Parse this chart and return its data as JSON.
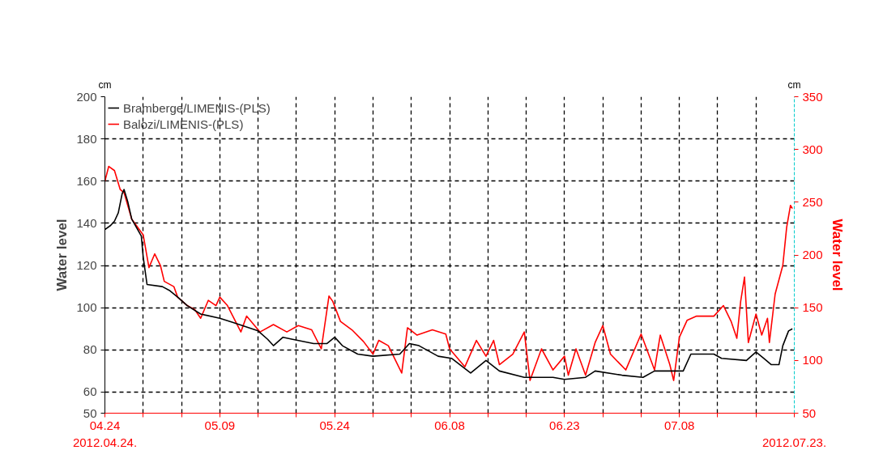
{
  "chart_data": {
    "type": "line",
    "ylabel": "Water level",
    "y2label": "Water level",
    "annotations": [
      "cm",
      "cm",
      "2012.04.24.",
      "2012.07.23."
    ],
    "xlim": [
      "2012-04-24",
      "2012-07-23"
    ],
    "xticks": [
      {
        "value": "2012-04-24",
        "label": "04.24"
      },
      {
        "value": "2012-04-29",
        "label": null
      },
      {
        "value": "2012-05-04",
        "label": null
      },
      {
        "value": "2012-05-09",
        "label": "05.09"
      },
      {
        "value": "2012-05-14",
        "label": null
      },
      {
        "value": "2012-05-19",
        "label": null
      },
      {
        "value": "2012-05-24",
        "label": "05.24"
      },
      {
        "value": "2012-05-29",
        "label": null
      },
      {
        "value": "2012-06-03",
        "label": null
      },
      {
        "value": "2012-06-08",
        "label": "06.08"
      },
      {
        "value": "2012-06-13",
        "label": null
      },
      {
        "value": "2012-06-18",
        "label": null
      },
      {
        "value": "2012-06-23",
        "label": "06.23"
      },
      {
        "value": "2012-06-28",
        "label": null
      },
      {
        "value": "2012-07-03",
        "label": null
      },
      {
        "value": "2012-07-08",
        "label": "07.08"
      },
      {
        "value": "2012-07-13",
        "label": null
      },
      {
        "value": "2012-07-18",
        "label": null
      },
      {
        "value": "2012-07-23",
        "label": null
      }
    ],
    "ylim": [
      50,
      200
    ],
    "yticks": [
      50,
      60,
      80,
      100,
      120,
      140,
      160,
      180,
      200
    ],
    "y2lim": [
      50,
      350
    ],
    "y2ticks": [
      50,
      100,
      150,
      200,
      250,
      300,
      350
    ],
    "grid": true,
    "legend": "top left",
    "line_style": "solid",
    "series": [
      {
        "name": "Bramberge/LIMENIS-(PLS)",
        "color": "#000000",
        "x": [
          "2012-04-24T00:00",
          "2012-04-24T18:00",
          "2012-04-25T06:00",
          "2012-04-25T18:00",
          "2012-04-26T06:00",
          "2012-04-26T12:00",
          "2012-04-27T00:00",
          "2012-04-27T12:00",
          "2012-04-28T18:00",
          "2012-04-29T00:00",
          "2012-04-29T12:00",
          "2012-05-01T12:00",
          "2012-05-02T12:00",
          "2012-05-03T12:00",
          "2012-05-04T18:00",
          "2012-05-06T12:00",
          "2012-05-09T00:00",
          "2012-05-10T18:00",
          "2012-05-14T00:00",
          "2012-05-15T06:00",
          "2012-05-16T00:00",
          "2012-05-17T06:00",
          "2012-05-18T12:00",
          "2012-05-21T06:00",
          "2012-05-23T00:00",
          "2012-05-24T00:00",
          "2012-05-25T00:00",
          "2012-05-27T00:00",
          "2012-05-29T00:00",
          "2012-06-01T12:00",
          "2012-06-02T18:00",
          "2012-06-04T00:00",
          "2012-06-06T12:00",
          "2012-06-08T06:00",
          "2012-06-10T18:00",
          "2012-06-12T18:00",
          "2012-06-14T12:00",
          "2012-06-17T18:00",
          "2012-06-21T12:00",
          "2012-06-23T00:00",
          "2012-06-25T18:00",
          "2012-06-27T00:00",
          "2012-06-30T12:00",
          "2012-07-03T06:00",
          "2012-07-04T18:00",
          "2012-07-08T12:00",
          "2012-07-09T12:00",
          "2012-07-12T12:00",
          "2012-07-13T12:00",
          "2012-07-16T18:00",
          "2012-07-18T00:00",
          "2012-07-19T00:00",
          "2012-07-20T00:00",
          "2012-07-21T00:00",
          "2012-07-21T12:00",
          "2012-07-22T06:00",
          "2012-07-22T18:00"
        ],
        "values": [
          137,
          139,
          141,
          145,
          154,
          156,
          150,
          142,
          134,
          124,
          111,
          110,
          108,
          105,
          101,
          97,
          95,
          93,
          89,
          85,
          82,
          86,
          85,
          83,
          83,
          86,
          82,
          78,
          77,
          78,
          83,
          82,
          77,
          76,
          69,
          75,
          70,
          67,
          67,
          66,
          67,
          70,
          68,
          67,
          70,
          70,
          78,
          78,
          76,
          75,
          79,
          76,
          73,
          73,
          82,
          89,
          90
        ]
      },
      {
        "name": "Balozi/LIMENIS-(PLS)",
        "color": "#ff0000",
        "axis": "y2",
        "x": [
          "2012-04-24T00:00",
          "2012-04-24T12:00",
          "2012-04-25T06:00",
          "2012-04-26T00:00",
          "2012-04-26T12:00",
          "2012-04-27T12:00",
          "2012-04-29T00:00",
          "2012-04-29T18:00",
          "2012-04-30T12:00",
          "2012-05-01T06:00",
          "2012-05-01T18:00",
          "2012-05-03T00:00",
          "2012-05-03T12:00",
          "2012-05-04T18:00",
          "2012-05-05T18:00",
          "2012-05-06T12:00",
          "2012-05-07T12:00",
          "2012-05-08T12:00",
          "2012-05-09T00:00",
          "2012-05-10T00:00",
          "2012-05-11T18:00",
          "2012-05-12T12:00",
          "2012-05-14T06:00",
          "2012-05-16T00:00",
          "2012-05-17T18:00",
          "2012-05-19T06:00",
          "2012-05-21T00:00",
          "2012-05-22T06:00",
          "2012-05-23T06:00",
          "2012-05-23T18:00",
          "2012-05-24T18:00",
          "2012-05-26T06:00",
          "2012-05-27T18:00",
          "2012-05-29T00:00",
          "2012-05-29T18:00",
          "2012-05-31T00:00",
          "2012-06-01T18:00",
          "2012-06-02T12:00",
          "2012-06-03T18:00",
          "2012-06-05T18:00",
          "2012-06-07T12:00",
          "2012-06-08T00:00",
          "2012-06-10T00:00",
          "2012-06-11T12:00",
          "2012-06-12T18:00",
          "2012-06-13T18:00",
          "2012-06-14T12:00",
          "2012-06-16T06:00",
          "2012-06-17T18:00",
          "2012-06-18T12:00",
          "2012-06-20T00:00",
          "2012-06-21T12:00",
          "2012-06-23T00:00",
          "2012-06-23T12:00",
          "2012-06-24T12:00",
          "2012-06-25T18:00",
          "2012-06-27T00:00",
          "2012-06-28T00:00",
          "2012-06-29T00:00",
          "2012-07-01T00:00",
          "2012-07-03T00:00",
          "2012-07-04T18:00",
          "2012-07-05T12:00",
          "2012-07-06T18:00",
          "2012-07-07T06:00",
          "2012-07-08T00:00",
          "2012-07-09T00:00",
          "2012-07-10T06:00",
          "2012-07-12T12:00",
          "2012-07-13T18:00",
          "2012-07-14T18:00",
          "2012-07-15T12:00",
          "2012-07-16T00:00",
          "2012-07-16T12:00",
          "2012-07-17T00:00",
          "2012-07-18T00:00",
          "2012-07-18T18:00",
          "2012-07-19T12:00",
          "2012-07-19T18:00",
          "2012-07-20T12:00",
          "2012-07-21T12:00",
          "2012-07-22T00:00",
          "2012-07-22T12:00",
          "2012-07-22T18:00"
        ],
        "values": [
          270,
          284,
          280,
          262,
          259,
          234,
          219,
          188,
          201,
          190,
          175,
          170,
          160,
          152,
          148,
          140,
          157,
          152,
          160,
          152,
          127,
          142,
          127,
          134,
          127,
          133,
          129,
          111,
          161,
          156,
          137,
          129,
          118,
          106,
          119,
          114,
          88,
          131,
          124,
          129,
          125,
          111,
          94,
          119,
          104,
          119,
          96,
          106,
          127,
          81,
          111,
          91,
          104,
          86,
          111,
          86,
          117,
          133,
          106,
          91,
          125,
          91,
          124,
          96,
          81,
          122,
          138,
          142,
          142,
          152,
          137,
          121,
          156,
          179,
          117,
          144,
          124,
          140,
          117,
          163,
          190,
          226,
          247,
          244
        ]
      }
    ]
  }
}
